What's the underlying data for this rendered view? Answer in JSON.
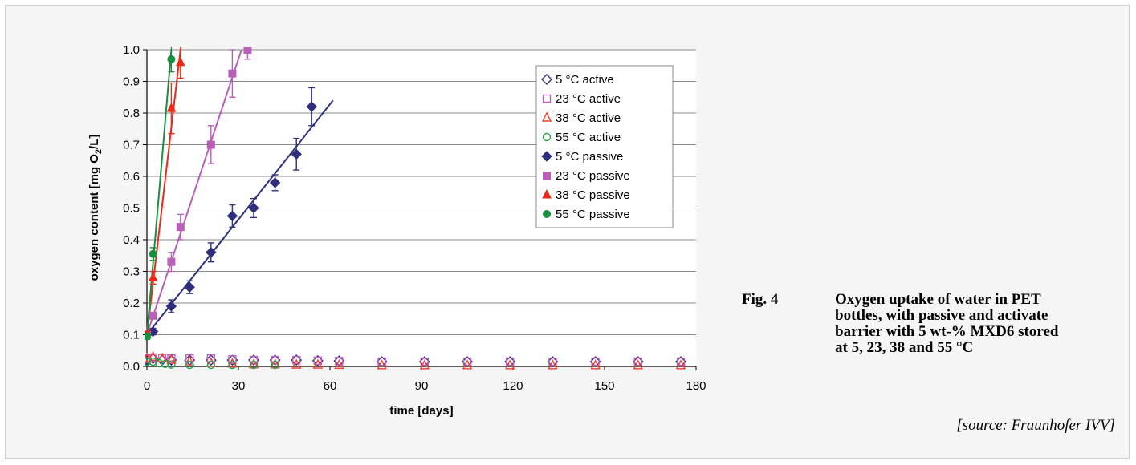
{
  "caption": {
    "fig_number": "Fig. 4",
    "text": "Oxygen uptake of water in PET bottles, with passive and activate barrier with 5 wt-% MXD6 stored at 5, 23, 38 and 55 °C",
    "source": "[source: Fraunhofer IVV]"
  },
  "chart_data": {
    "type": "scatter",
    "title": "",
    "xlabel": "time [days]",
    "ylabel": "oxygen content [mg O2/L]",
    "xlim": [
      0,
      180
    ],
    "ylim": [
      0,
      1.0
    ],
    "xticks": [
      0,
      30,
      60,
      90,
      120,
      150,
      180
    ],
    "yticks": [
      0.0,
      0.1,
      0.2,
      0.3,
      0.4,
      0.5,
      0.6,
      0.7,
      0.8,
      0.9,
      1.0
    ],
    "grid": "horizontal",
    "legend_position": "top-right",
    "series": [
      {
        "name": "5 °C active",
        "marker": "diamond-open",
        "color": "#33337a",
        "x": [
          0,
          2,
          5,
          8,
          14,
          21,
          28,
          35,
          42,
          49,
          56,
          63,
          77,
          91,
          105,
          119,
          133,
          147,
          161,
          175
        ],
        "y": [
          0.02,
          0.025,
          0.02,
          0.02,
          0.02,
          0.02,
          0.02,
          0.02,
          0.02,
          0.02,
          0.018,
          0.017,
          0.015,
          0.015,
          0.015,
          0.015,
          0.015,
          0.015,
          0.015,
          0.015
        ]
      },
      {
        "name": "23 °C active",
        "marker": "square-open",
        "color": "#c060c0",
        "x": [
          0,
          2,
          5,
          8,
          14,
          21,
          28,
          35,
          42,
          49,
          56,
          63,
          77,
          91,
          105,
          119,
          133,
          147,
          161,
          175
        ],
        "y": [
          0.025,
          0.028,
          0.026,
          0.025,
          0.025,
          0.025,
          0.022,
          0.02,
          0.02,
          0.02,
          0.018,
          0.017,
          0.015,
          0.015,
          0.015,
          0.015,
          0.015,
          0.015,
          0.015,
          0.015
        ]
      },
      {
        "name": "38 °C active",
        "marker": "triangle-open",
        "color": "#f04030",
        "x": [
          0,
          2,
          5,
          8,
          14,
          21,
          28,
          35,
          42,
          49,
          56,
          63,
          77,
          91,
          105,
          119,
          133,
          147,
          161,
          175
        ],
        "y": [
          0.025,
          0.03,
          0.025,
          0.02,
          0.015,
          0.01,
          0.008,
          0.006,
          0.006,
          0.005,
          0.005,
          0.004,
          0.003,
          0.003,
          0.003,
          0.003,
          0.003,
          0.003,
          0.003,
          0.003
        ]
      },
      {
        "name": "55 °C active",
        "marker": "circle-open",
        "color": "#30a050",
        "x": [
          0,
          2,
          4,
          6,
          8,
          14,
          21,
          28,
          35,
          42
        ],
        "y": [
          0.015,
          0.015,
          0.01,
          0.008,
          0.006,
          0.005,
          0.005,
          0.005,
          0.005,
          0.005
        ]
      },
      {
        "name": "5 °C passive",
        "marker": "diamond-filled",
        "color": "#2e2e7c",
        "x": [
          0,
          2,
          8,
          14,
          21,
          28,
          35,
          42,
          49,
          54
        ],
        "y": [
          0.1,
          0.11,
          0.19,
          0.25,
          0.36,
          0.475,
          0.5,
          0.58,
          0.67,
          0.82
        ],
        "err": [
          0.01,
          0.01,
          0.02,
          0.02,
          0.03,
          0.035,
          0.03,
          0.025,
          0.05,
          0.06
        ],
        "fit": {
          "x": [
            0,
            61
          ],
          "y": [
            0.1,
            0.84
          ]
        }
      },
      {
        "name": "23 °C passive",
        "marker": "square-filled",
        "color": "#b860b8",
        "x": [
          0,
          2,
          8,
          11,
          21,
          28,
          33
        ],
        "y": [
          0.1,
          0.16,
          0.33,
          0.44,
          0.7,
          0.925,
          1.0
        ],
        "err": [
          0.01,
          0.01,
          0.03,
          0.04,
          0.06,
          0.075,
          0.03
        ],
        "fit": {
          "x": [
            0,
            31
          ],
          "y": [
            0.1,
            1.0
          ]
        }
      },
      {
        "name": "38 °C  passive",
        "marker": "triangle-filled",
        "color": "#f02818",
        "x": [
          0,
          2,
          8,
          11
        ],
        "y": [
          0.1,
          0.28,
          0.815,
          0.96
        ],
        "err": [
          0.01,
          0.02,
          0.08,
          0.05
        ],
        "fit": {
          "x": [
            0,
            11
          ],
          "y": [
            0.1,
            1.0
          ]
        }
      },
      {
        "name": "55 °C passive",
        "marker": "circle-filled",
        "color": "#189040",
        "x": [
          0,
          2,
          8
        ],
        "y": [
          0.095,
          0.355,
          0.97
        ],
        "err": [
          0.01,
          0.02,
          0.04
        ],
        "fit": {
          "x": [
            0,
            8
          ],
          "y": [
            0.1,
            1.0
          ]
        }
      }
    ]
  }
}
